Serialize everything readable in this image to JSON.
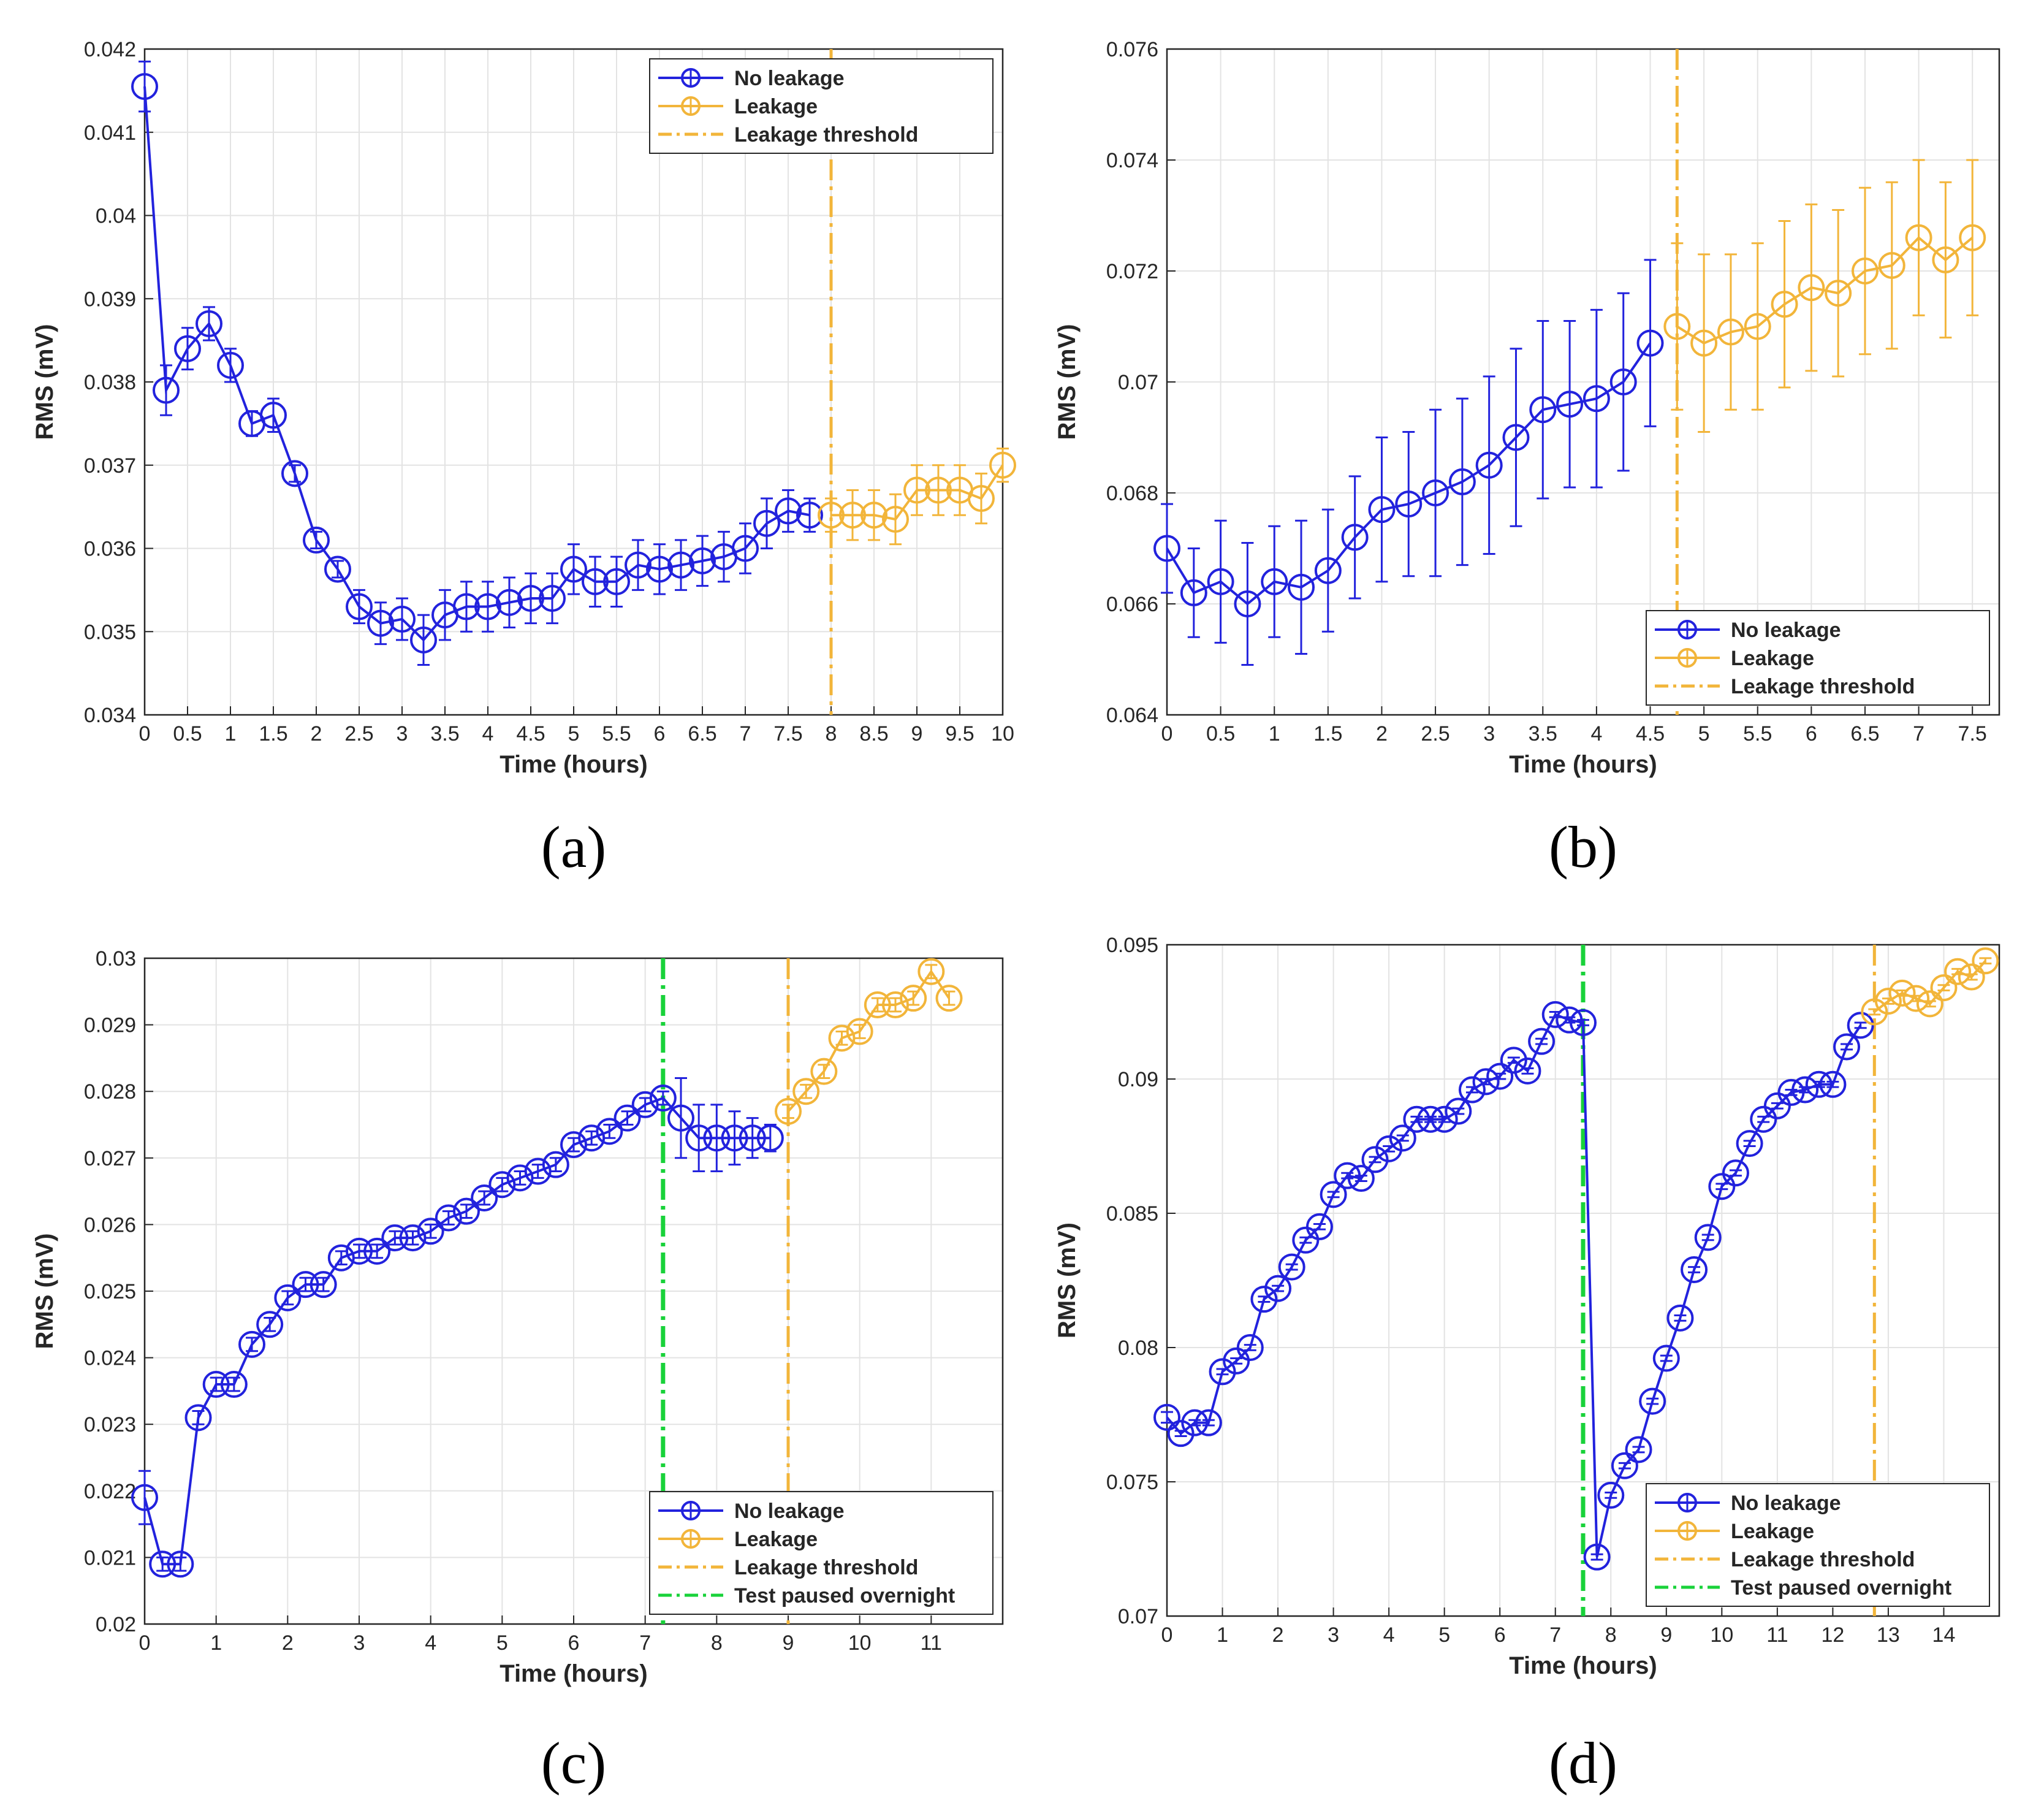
{
  "colors": {
    "no_leakage": "#2222dd",
    "leakage": "#f2b53a",
    "threshold": "#f2b53a",
    "paused": "#19d23a",
    "grid": "#e3e3e3",
    "axis": "#262626"
  },
  "chart_data": [
    {
      "panel": "(a)",
      "type": "line",
      "xlabel": "Time (hours)",
      "ylabel": "RMS (mV)",
      "xlim": [
        0,
        10
      ],
      "ylim": [
        0.034,
        0.042
      ],
      "xticks": [
        0,
        0.5,
        1,
        1.5,
        2,
        2.5,
        3,
        3.5,
        4,
        4.5,
        5,
        5.5,
        6,
        6.5,
        7,
        7.5,
        8,
        8.5,
        9,
        9.5,
        10
      ],
      "xtick_labels": [
        "0",
        "0.5",
        "1",
        "1.5",
        "2",
        "2.5",
        "3",
        "3.5",
        "4",
        "4.5",
        "5",
        "5.5",
        "6",
        "6.5",
        "7",
        "7.5",
        "8",
        "8.5",
        "9",
        "9.5",
        "10"
      ],
      "yticks": [
        0.034,
        0.035,
        0.036,
        0.037,
        0.038,
        0.039,
        0.04,
        0.041,
        0.042
      ],
      "ytick_labels": [
        "0.034",
        "0.035",
        "0.036",
        "0.037",
        "0.038",
        "0.039",
        "0.04",
        "0.041",
        "0.042"
      ],
      "grid": true,
      "legend_position": "top-right",
      "legend": [
        "No leakage",
        "Leakage",
        "Leakage threshold"
      ],
      "series": [
        {
          "name": "No leakage",
          "x": [
            0,
            0.25,
            0.5,
            0.75,
            1,
            1.25,
            1.5,
            1.75,
            2,
            2.25,
            2.5,
            2.75,
            3,
            3.25,
            3.5,
            3.75,
            4,
            4.25,
            4.5,
            4.75,
            5,
            5.25,
            5.5,
            5.75,
            6,
            6.25,
            6.5,
            6.75,
            7,
            7.25,
            7.5,
            7.75
          ],
          "y": [
            0.04155,
            0.0379,
            0.0384,
            0.0387,
            0.0382,
            0.0375,
            0.0376,
            0.0369,
            0.0361,
            0.03575,
            0.0353,
            0.0351,
            0.03515,
            0.0349,
            0.0352,
            0.0353,
            0.0353,
            0.03535,
            0.0354,
            0.0354,
            0.03575,
            0.0356,
            0.0356,
            0.0358,
            0.03575,
            0.0358,
            0.03585,
            0.0359,
            0.036,
            0.0363,
            0.03645,
            0.0364
          ],
          "err": [
            0.0003,
            0.0003,
            0.00025,
            0.0002,
            0.0002,
            0.00015,
            0.0002,
            0.0001,
            0.0001,
            0.0001,
            0.0002,
            0.00025,
            0.00025,
            0.0003,
            0.0003,
            0.0003,
            0.0003,
            0.0003,
            0.0003,
            0.0003,
            0.0003,
            0.0003,
            0.0003,
            0.0003,
            0.0003,
            0.0003,
            0.0003,
            0.0003,
            0.0003,
            0.0003,
            0.00025,
            0.0002
          ]
        },
        {
          "name": "Leakage",
          "x": [
            8,
            8.25,
            8.5,
            8.75,
            9,
            9.25,
            9.5,
            9.75,
            10
          ],
          "y": [
            0.0364,
            0.0364,
            0.0364,
            0.03635,
            0.0367,
            0.0367,
            0.0367,
            0.0366,
            0.037
          ],
          "err": [
            0.0002,
            0.0003,
            0.0003,
            0.0003,
            0.0003,
            0.0003,
            0.0003,
            0.0003,
            0.0002
          ]
        }
      ],
      "vlines": [
        {
          "name": "Leakage threshold",
          "x": 8,
          "color": "threshold"
        }
      ]
    },
    {
      "panel": "(b)",
      "type": "line",
      "xlabel": "Time (hours)",
      "ylabel": "RMS (mV)",
      "xlim": [
        0,
        7.75
      ],
      "ylim": [
        0.064,
        0.076
      ],
      "xticks": [
        0,
        0.5,
        1,
        1.5,
        2,
        2.5,
        3,
        3.5,
        4,
        4.5,
        5,
        5.5,
        6,
        6.5,
        7,
        7.5
      ],
      "xtick_labels": [
        "0",
        "0.5",
        "1",
        "1.5",
        "2",
        "2.5",
        "3",
        "3.5",
        "4",
        "4.5",
        "5",
        "5.5",
        "6",
        "6.5",
        "7",
        "7.5"
      ],
      "yticks": [
        0.064,
        0.066,
        0.068,
        0.07,
        0.072,
        0.074,
        0.076
      ],
      "ytick_labels": [
        "0.064",
        "0.066",
        "0.068",
        "0.07",
        "0.072",
        "0.074",
        "0.076"
      ],
      "grid": true,
      "legend_position": "bottom-right",
      "legend": [
        "No leakage",
        "Leakage",
        "Leakage threshold"
      ],
      "series": [
        {
          "name": "No leakage",
          "x": [
            0,
            0.25,
            0.5,
            0.75,
            1,
            1.25,
            1.5,
            1.75,
            2,
            2.25,
            2.5,
            2.75,
            3,
            3.25,
            3.5,
            3.75,
            4,
            4.25,
            4.5
          ],
          "y": [
            0.067,
            0.0662,
            0.0664,
            0.066,
            0.0664,
            0.0663,
            0.0666,
            0.0672,
            0.0677,
            0.0678,
            0.068,
            0.0682,
            0.0685,
            0.069,
            0.0695,
            0.0696,
            0.0697,
            0.07,
            0.0707
          ],
          "err": [
            0.0008,
            0.0008,
            0.0011,
            0.0011,
            0.001,
            0.0012,
            0.0011,
            0.0011,
            0.0013,
            0.0013,
            0.0015,
            0.0015,
            0.0016,
            0.0016,
            0.0016,
            0.0015,
            0.0016,
            0.0016,
            0.0015
          ]
        },
        {
          "name": "Leakage",
          "x": [
            4.75,
            5,
            5.25,
            5.5,
            5.75,
            6,
            6.25,
            6.5,
            6.75,
            7,
            7.25,
            7.5
          ],
          "y": [
            0.071,
            0.0707,
            0.0709,
            0.071,
            0.0714,
            0.0717,
            0.0716,
            0.072,
            0.0721,
            0.0726,
            0.0722,
            0.0726
          ],
          "err": [
            0.0015,
            0.0016,
            0.0014,
            0.0015,
            0.0015,
            0.0015,
            0.0015,
            0.0015,
            0.0015,
            0.0014,
            0.0014,
            0.0014
          ]
        }
      ],
      "vlines": [
        {
          "name": "Leakage threshold",
          "x": 4.75,
          "color": "threshold"
        }
      ]
    },
    {
      "panel": "(c)",
      "type": "line",
      "xlabel": "Time (hours)",
      "ylabel": "RMS (mV)",
      "xlim": [
        0,
        12
      ],
      "ylim": [
        0.02,
        0.03
      ],
      "xticks": [
        0,
        1,
        2,
        3,
        4,
        5,
        6,
        7,
        8,
        9,
        10,
        11
      ],
      "xtick_labels": [
        "0",
        "1",
        "2",
        "3",
        "4",
        "5",
        "6",
        "7",
        "8",
        "9",
        "10",
        "11"
      ],
      "yticks": [
        0.02,
        0.021,
        0.022,
        0.023,
        0.024,
        0.025,
        0.026,
        0.027,
        0.028,
        0.029,
        0.03
      ],
      "ytick_labels": [
        "0.02",
        "0.021",
        "0.022",
        "0.023",
        "0.024",
        "0.025",
        "0.026",
        "0.027",
        "0.028",
        "0.029",
        "0.03"
      ],
      "grid": true,
      "legend_position": "bottom-right",
      "legend": [
        "No leakage",
        "Leakage",
        "Leakage threshold",
        "Test paused overnight"
      ],
      "series": [
        {
          "name": "No leakage",
          "x": [
            0,
            0.25,
            0.5,
            0.75,
            1,
            1.25,
            1.5,
            1.75,
            2,
            2.25,
            2.5,
            2.75,
            3,
            3.25,
            3.5,
            3.75,
            4,
            4.25,
            4.5,
            4.75,
            5,
            5.25,
            5.5,
            5.75,
            6,
            6.25,
            6.5,
            6.75,
            7,
            7.25,
            7.5,
            7.75,
            8,
            8.25,
            8.5,
            8.75
          ],
          "y": [
            0.0219,
            0.0209,
            0.0209,
            0.0231,
            0.0236,
            0.0236,
            0.0242,
            0.0245,
            0.0249,
            0.0251,
            0.0251,
            0.0255,
            0.0256,
            0.0256,
            0.0258,
            0.0258,
            0.0259,
            0.0261,
            0.0262,
            0.0264,
            0.0266,
            0.0267,
            0.0268,
            0.0269,
            0.0272,
            0.0273,
            0.0274,
            0.0276,
            0.0278,
            0.0279,
            0.0276,
            0.0273,
            0.0273,
            0.0273,
            0.0273,
            0.0273
          ],
          "err": [
            0.0004,
            0.0001,
            0.0001,
            0.0001,
            0.0001,
            0.0001,
            0.0001,
            0.0001,
            0.0001,
            0.0001,
            0.0001,
            0.0001,
            0.0001,
            0.0001,
            0.0001,
            0.0001,
            0.0001,
            0.0001,
            0.0001,
            0.0001,
            0.0001,
            0.0001,
            0.0001,
            0.0001,
            0.0001,
            0.0001,
            0.0001,
            0.0001,
            0.0001,
            0.0001,
            0.0006,
            0.0005,
            0.0005,
            0.0004,
            0.0003,
            0.0002
          ]
        },
        {
          "name": "Leakage",
          "x": [
            9,
            9.25,
            9.5,
            9.75,
            10,
            10.25,
            10.5,
            10.75,
            11,
            11.25
          ],
          "y": [
            0.0277,
            0.028,
            0.0283,
            0.0288,
            0.0289,
            0.0293,
            0.0293,
            0.0294,
            0.0298,
            0.0294
          ],
          "err": [
            0.0001,
            0.0001,
            0.0001,
            0.0001,
            0.0001,
            0.0001,
            0.0001,
            0.0001,
            0.0001,
            0.0001
          ]
        }
      ],
      "vlines": [
        {
          "name": "Test paused overnight",
          "x": 7.25,
          "color": "paused"
        },
        {
          "name": "Leakage threshold",
          "x": 9,
          "color": "threshold"
        }
      ]
    },
    {
      "panel": "(d)",
      "type": "line",
      "xlabel": "Time (hours)",
      "ylabel": "RMS (mV)",
      "xlim": [
        0,
        15
      ],
      "ylim": [
        0.07,
        0.095
      ],
      "xticks": [
        0,
        1,
        2,
        3,
        4,
        5,
        6,
        7,
        8,
        9,
        10,
        11,
        12,
        13,
        14
      ],
      "xtick_labels": [
        "0",
        "1",
        "2",
        "3",
        "4",
        "5",
        "6",
        "7",
        "8",
        "9",
        "10",
        "11",
        "12",
        "13",
        "14"
      ],
      "yticks": [
        0.07,
        0.075,
        0.08,
        0.085,
        0.09,
        0.095
      ],
      "ytick_labels": [
        "0.07",
        "0.075",
        "0.08",
        "0.085",
        "0.09",
        "0.095"
      ],
      "grid": true,
      "legend_position": "bottom-right",
      "legend": [
        "No leakage",
        "Leakage",
        "Leakage threshold",
        "Test paused overnight"
      ],
      "series": [
        {
          "name": "No leakage",
          "x": [
            0,
            0.25,
            0.5,
            0.75,
            1,
            1.25,
            1.5,
            1.75,
            2,
            2.25,
            2.5,
            2.75,
            3,
            3.25,
            3.5,
            3.75,
            4,
            4.25,
            4.5,
            4.75,
            5,
            5.25,
            5.5,
            5.75,
            6,
            6.25,
            6.5,
            6.75,
            7,
            7.25,
            7.5,
            7.75,
            8,
            8.25,
            8.5,
            8.75,
            9,
            9.25,
            9.5,
            9.75,
            10,
            10.25,
            10.5,
            10.75,
            11,
            11.25,
            11.5,
            11.75,
            12,
            12.25,
            12.5
          ],
          "y": [
            0.0774,
            0.0768,
            0.0772,
            0.0772,
            0.0791,
            0.0795,
            0.08,
            0.0818,
            0.0822,
            0.083,
            0.084,
            0.0845,
            0.0857,
            0.0864,
            0.0863,
            0.087,
            0.0874,
            0.0878,
            0.0885,
            0.0885,
            0.0885,
            0.0888,
            0.0896,
            0.0899,
            0.0901,
            0.0907,
            0.0903,
            0.0914,
            0.0924,
            0.0922,
            0.0921,
            0.0722,
            0.0745,
            0.0756,
            0.0762,
            0.078,
            0.0796,
            0.0811,
            0.0829,
            0.0841,
            0.086,
            0.0865,
            0.0876,
            0.0885,
            0.089,
            0.0895,
            0.0896,
            0.0898,
            0.0898,
            0.0912,
            0.092
          ],
          "err": [
            0.0002,
            0.0001,
            0.0001,
            0.0001,
            0.0001,
            0.0001,
            0.0001,
            0.0001,
            0.0001,
            0.0001,
            0.0001,
            0.0001,
            0.0001,
            0.0001,
            0.0001,
            0.0001,
            0.0001,
            0.0001,
            0.0001,
            0.0001,
            0.0001,
            0.0001,
            0.0001,
            0.0001,
            0.0001,
            0.0001,
            0.0001,
            0.0001,
            0.0001,
            0.0001,
            0.0001,
            0.0001,
            0.0001,
            0.0001,
            0.0001,
            0.0001,
            0.0001,
            0.0001,
            0.0001,
            0.0001,
            0.0001,
            0.0001,
            0.0001,
            0.0001,
            0.0001,
            0.0001,
            0.0001,
            0.0001,
            0.0001,
            0.0001,
            0.0001
          ]
        },
        {
          "name": "Leakage",
          "x": [
            12.75,
            13,
            13.25,
            13.5,
            13.75,
            14,
            14.25,
            14.5,
            14.75
          ],
          "y": [
            0.0925,
            0.0929,
            0.0932,
            0.093,
            0.0928,
            0.0934,
            0.094,
            0.0938,
            0.0944
          ],
          "err": [
            0.0001,
            0.0001,
            0.0001,
            0.0001,
            0.0001,
            0.0001,
            0.0001,
            0.0001,
            0.0001
          ]
        }
      ],
      "vlines": [
        {
          "name": "Test paused overnight",
          "x": 7.5,
          "color": "paused"
        },
        {
          "name": "Leakage threshold",
          "x": 12.75,
          "color": "threshold"
        }
      ]
    }
  ]
}
